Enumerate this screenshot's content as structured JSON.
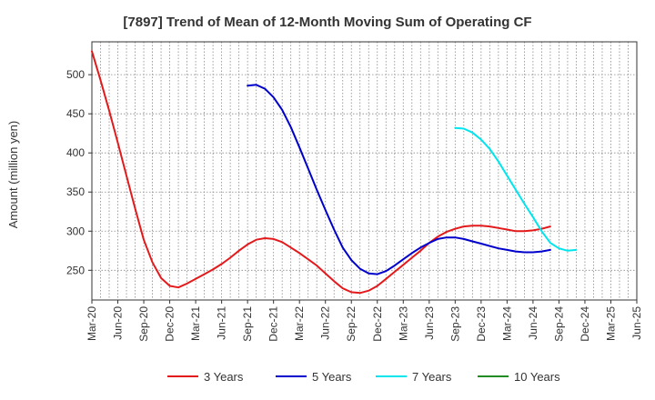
{
  "chart_data": {
    "type": "line",
    "title": "[7897]  Trend of Mean of 12-Month Moving Sum of Operating CF",
    "xlabel": "",
    "ylabel": "Amount (million yen)",
    "ylim": [
      212,
      542
    ],
    "yticks": [
      250,
      300,
      350,
      400,
      450,
      500
    ],
    "xticks": [
      "Mar-20",
      "Jun-20",
      "Sep-20",
      "Dec-20",
      "Mar-21",
      "Jun-21",
      "Sep-21",
      "Dec-21",
      "Mar-22",
      "Jun-22",
      "Sep-22",
      "Dec-22",
      "Mar-23",
      "Jun-23",
      "Sep-23",
      "Dec-23",
      "Mar-24",
      "Jun-24",
      "Sep-24",
      "Dec-24",
      "Mar-25",
      "Jun-25"
    ],
    "grid": true,
    "legend_position": "bottom",
    "series": [
      {
        "name": "3 Years",
        "color": "#e31a1c",
        "start_index": 0,
        "values": [
          530,
          493,
          454,
          413,
          371,
          329,
          289,
          260,
          240,
          230,
          228,
          233,
          239,
          245,
          251,
          258,
          266,
          275,
          283,
          289,
          291,
          290,
          286,
          279,
          272,
          264,
          256,
          246,
          236,
          227,
          222,
          221,
          224,
          230,
          239,
          248,
          257,
          266,
          275,
          285,
          293,
          299,
          303,
          306,
          307,
          307,
          306,
          304,
          302,
          300,
          300,
          301,
          303,
          306
        ]
      },
      {
        "name": "5 Years",
        "color": "#0000cc",
        "start_index": 18,
        "values": [
          486,
          487,
          482,
          471,
          455,
          433,
          407,
          380,
          353,
          327,
          302,
          279,
          263,
          252,
          246,
          245,
          249,
          256,
          264,
          272,
          279,
          285,
          290,
          292,
          292,
          290,
          287,
          284,
          281,
          278,
          276,
          274,
          273,
          273,
          274,
          276
        ]
      },
      {
        "name": "7 Years",
        "color": "#00e5ee",
        "start_index": 42,
        "values": [
          432,
          431,
          426,
          417,
          405,
          389,
          371,
          353,
          335,
          318,
          300,
          285,
          278,
          275,
          276
        ]
      },
      {
        "name": "10 Years",
        "color": "#228b22",
        "start_index": 0,
        "values": []
      }
    ]
  }
}
